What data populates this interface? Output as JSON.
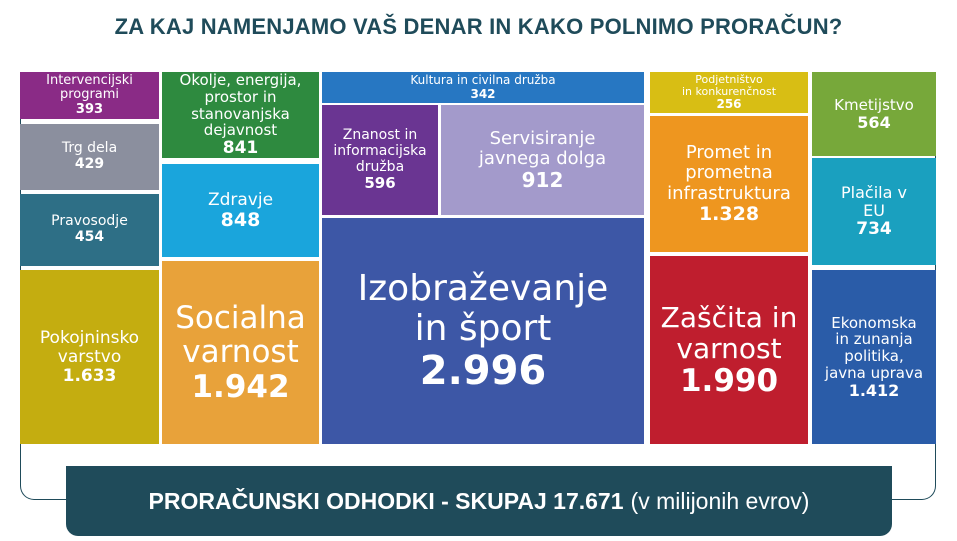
{
  "title": "ZA KAJ NAMENJAMO VAŠ DENAR IN KAKO POLNIMO PRORAČUN?",
  "total": {
    "label": "PRORAČUNSKI ODHODKI - SKUPAJ 17.671",
    "unit": "(v milijonih evrov)"
  },
  "chart_data": {
    "type": "treemap",
    "title": "ZA KAJ NAMENJAMO VAŠ DENAR IN KAKO POLNIMO PRORAČUN?",
    "total_value": 17671,
    "unit": "v milijonih evrov",
    "items": [
      {
        "label": "Intervencijski programi",
        "value": 393,
        "value_text": "393",
        "color": "#8a2b86"
      },
      {
        "label": "Trg dela",
        "value": 429,
        "value_text": "429",
        "color": "#8b8f9e"
      },
      {
        "label": "Pravosodje",
        "value": 454,
        "value_text": "454",
        "color": "#2e6f86"
      },
      {
        "label": "Pokojninsko\nvarstvo",
        "value": 1633,
        "value_text": "1.633",
        "color": "#c4ad10"
      },
      {
        "label": "Okolje, energija,\nprostor in\nstanovanjska\ndejavnost",
        "value": 841,
        "value_text": "841",
        "color": "#2e8a3f"
      },
      {
        "label": "Zdravje",
        "value": 848,
        "value_text": "848",
        "color": "#1aa5dc"
      },
      {
        "label": "Socialna\nvarnost",
        "value": 1942,
        "value_text": "1.942",
        "color": "#e8a23a"
      },
      {
        "label": "Kultura in civilna družba",
        "value": 342,
        "value_text": "342",
        "color": "#2777c2"
      },
      {
        "label": "Znanost in\ninformacijska\ndružba",
        "value": 596,
        "value_text": "596",
        "color": "#6a3592"
      },
      {
        "label": "Servisiranje\njavnega dolga",
        "value": 912,
        "value_text": "912",
        "color": "#a39acb"
      },
      {
        "label": "Izobraževanje\nin šport",
        "value": 2996,
        "value_text": "2.996",
        "color": "#3d57a6"
      },
      {
        "label": "Podjetništvo\nin konkurenčnost",
        "value": 256,
        "value_text": "256",
        "color": "#d8be14"
      },
      {
        "label": "Promet in\nprometna\ninfrastruktura",
        "value": 1328,
        "value_text": "1.328",
        "color": "#ee961f"
      },
      {
        "label": "Zaščita in\nvarnost",
        "value": 1990,
        "value_text": "1.990",
        "color": "#bf1e2e"
      },
      {
        "label": "Kmetijstvo",
        "value": 564,
        "value_text": "564",
        "color": "#77a83a"
      },
      {
        "label": "Plačila v\nEU",
        "value": 734,
        "value_text": "734",
        "color": "#1aa0bf"
      },
      {
        "label": "Ekonomska\nin zunanja\npolitika,\njavna uprava",
        "value": 1412,
        "value_text": "1.412",
        "color": "#2a5ca8"
      }
    ]
  }
}
